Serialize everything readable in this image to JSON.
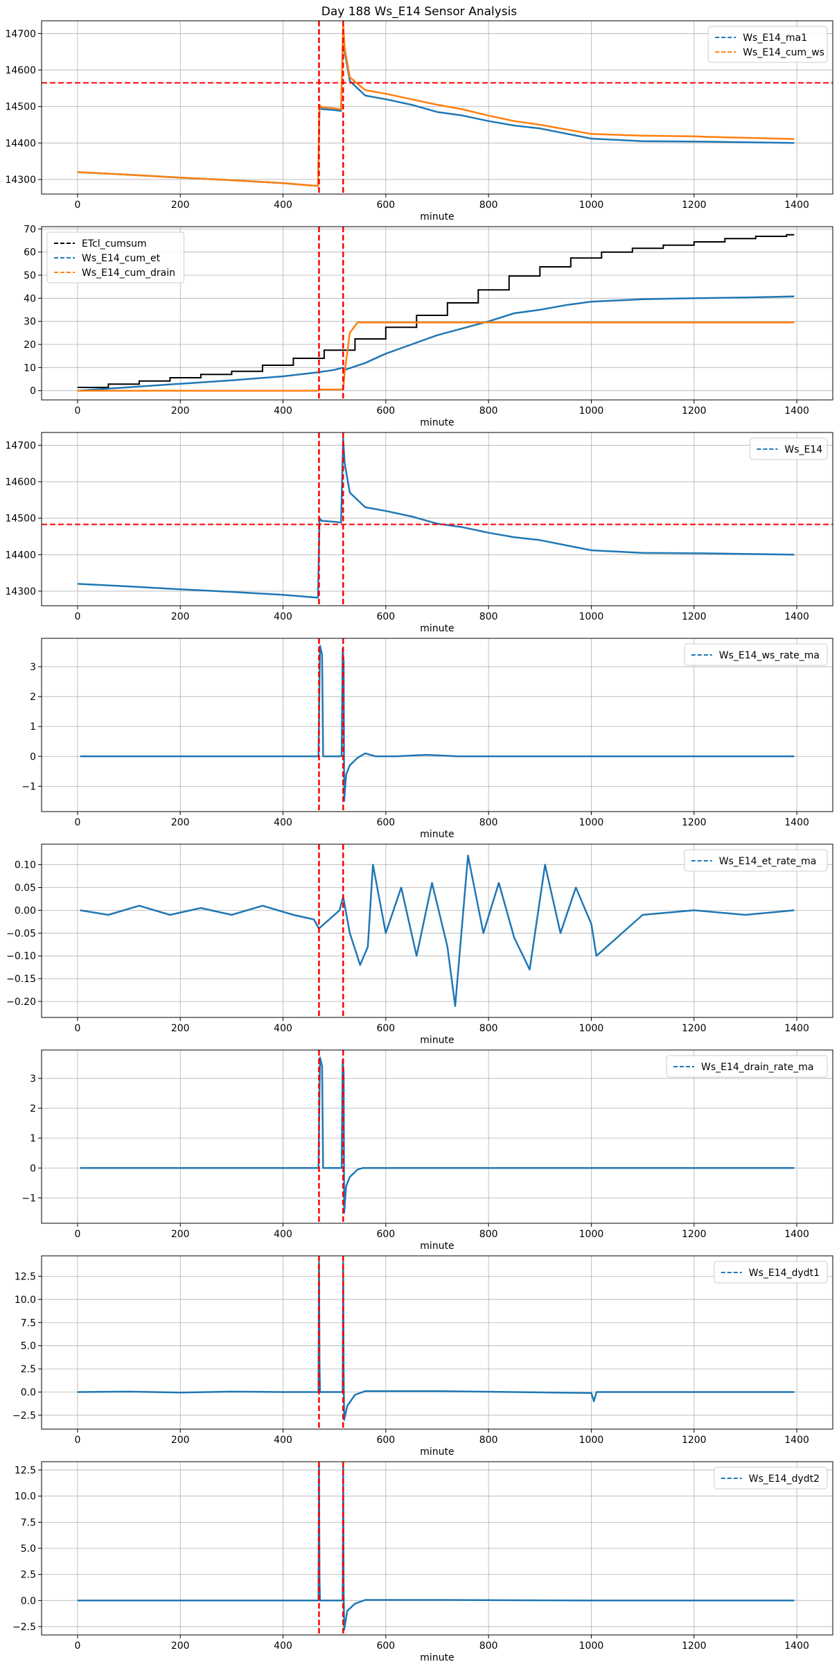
{
  "title": "Day 188 Ws_E14 Sensor Analysis",
  "colors": {
    "blue": "#1f77b4",
    "orange": "#ff7f0e",
    "black": "#000000",
    "threshold": "#ff0000",
    "grid": "#b0b0b0"
  },
  "chart_data": [
    {
      "type": "line",
      "xlabel": "minute",
      "xlim": [
        -70,
        1470
      ],
      "xticks": [
        0,
        200,
        400,
        600,
        800,
        1000,
        1200,
        1400
      ],
      "ylim": [
        14260,
        14735
      ],
      "yticks": [
        14300,
        14400,
        14500,
        14600,
        14700
      ],
      "ytick_labels": [
        "14300",
        "14400",
        "14500",
        "14600",
        "14700"
      ],
      "vlines": [
        470,
        517
      ],
      "hline": 14565,
      "legend": "upper right",
      "series": [
        {
          "name": "Ws_E14_ma1",
          "color": "blue",
          "x": [
            0,
            100,
            200,
            300,
            400,
            468,
            471,
            475,
            500,
            513,
            517,
            520,
            530,
            560,
            600,
            650,
            700,
            750,
            800,
            850,
            900,
            1000,
            1100,
            1200,
            1300,
            1395
          ],
          "y": [
            14320,
            14313,
            14305,
            14298,
            14290,
            14282,
            14500,
            14493,
            14490,
            14488,
            14718,
            14650,
            14570,
            14530,
            14520,
            14505,
            14485,
            14475,
            14460,
            14448,
            14440,
            14412,
            14405,
            14404,
            14402,
            14400
          ]
        },
        {
          "name": "Ws_E14_cum_ws",
          "color": "orange",
          "x": [
            0,
            100,
            200,
            300,
            400,
            468,
            471,
            475,
            500,
            513,
            517,
            520,
            530,
            560,
            600,
            650,
            700,
            750,
            800,
            850,
            900,
            1000,
            1100,
            1200,
            1300,
            1395
          ],
          "y": [
            14320,
            14313,
            14305,
            14298,
            14290,
            14282,
            14505,
            14498,
            14495,
            14492,
            14725,
            14660,
            14580,
            14545,
            14535,
            14520,
            14505,
            14492,
            14475,
            14460,
            14450,
            14425,
            14420,
            14418,
            14414,
            14411
          ]
        }
      ]
    },
    {
      "type": "line",
      "xlabel": "minute",
      "xlim": [
        -70,
        1470
      ],
      "xticks": [
        0,
        200,
        400,
        600,
        800,
        1000,
        1200,
        1400
      ],
      "ylim": [
        -4,
        71
      ],
      "yticks": [
        0,
        10,
        20,
        30,
        40,
        50,
        60,
        70
      ],
      "ytick_labels": [
        "0",
        "10",
        "20",
        "30",
        "40",
        "50",
        "60",
        "70"
      ],
      "vlines": [
        470,
        517
      ],
      "legend": "upper left",
      "step_series": [
        {
          "name": "ETcl_cumsum",
          "color": "black",
          "start": 0,
          "end": 1395,
          "step": 60,
          "values": [
            1.4,
            2.8,
            4.2,
            5.6,
            7.0,
            8.4,
            11.0,
            14.0,
            17.5,
            22.4,
            27.4,
            32.6,
            38.0,
            43.6,
            49.6,
            53.6,
            57.4,
            60.0,
            61.6,
            63.0,
            64.4,
            65.8,
            66.8,
            67.5
          ]
        }
      ],
      "series": [
        {
          "name": "Ws_E14_cum_et",
          "color": "blue",
          "x": [
            0,
            100,
            200,
            300,
            400,
            470,
            500,
            517,
            520,
            560,
            600,
            650,
            700,
            750,
            800,
            850,
            900,
            950,
            1000,
            1100,
            1200,
            1300,
            1395
          ],
          "y": [
            0,
            1.5,
            3,
            4.5,
            6.2,
            8.0,
            9.0,
            10,
            9,
            12,
            16,
            20,
            24,
            27,
            30,
            33.5,
            35,
            37,
            38.5,
            39.6,
            40,
            40.3,
            40.8
          ]
        },
        {
          "name": "Ws_E14_cum_drain",
          "color": "orange",
          "x": [
            0,
            468,
            471,
            517,
            520,
            530,
            545,
            1395
          ],
          "y": [
            0,
            0,
            0.5,
            0.5,
            8,
            25,
            29.5,
            29.5
          ]
        }
      ]
    },
    {
      "type": "line",
      "xlabel": "minute",
      "xlim": [
        -70,
        1470
      ],
      "xticks": [
        0,
        200,
        400,
        600,
        800,
        1000,
        1200,
        1400
      ],
      "ylim": [
        14260,
        14735
      ],
      "yticks": [
        14300,
        14400,
        14500,
        14600,
        14700
      ],
      "ytick_labels": [
        "14300",
        "14400",
        "14500",
        "14600",
        "14700"
      ],
      "vlines": [
        470,
        517
      ],
      "hline": 14483,
      "legend": "upper right",
      "series": [
        {
          "name": "Ws_E14",
          "color": "blue",
          "x": [
            0,
            100,
            200,
            300,
            400,
            468,
            471,
            475,
            500,
            513,
            517,
            520,
            530,
            560,
            600,
            650,
            700,
            750,
            800,
            850,
            900,
            1000,
            1100,
            1200,
            1300,
            1395
          ],
          "y": [
            14320,
            14313,
            14305,
            14298,
            14290,
            14282,
            14500,
            14493,
            14490,
            14488,
            14718,
            14650,
            14570,
            14530,
            14520,
            14505,
            14485,
            14475,
            14460,
            14448,
            14440,
            14412,
            14405,
            14404,
            14402,
            14400
          ]
        }
      ]
    },
    {
      "type": "line",
      "xlabel": "minute",
      "xlim": [
        -70,
        1470
      ],
      "xticks": [
        0,
        200,
        400,
        600,
        800,
        1000,
        1200,
        1400
      ],
      "ylim": [
        -1.85,
        3.95
      ],
      "yticks": [
        -1,
        0,
        1,
        2,
        3
      ],
      "ytick_labels": [
        "−1",
        "0",
        "1",
        "2",
        "3"
      ],
      "vlines": [
        470,
        517
      ],
      "legend": "upper right",
      "series": [
        {
          "name": "Ws_E14_ws_rate_ma",
          "color": "blue",
          "x": [
            5,
            465,
            469,
            472,
            476,
            478,
            514,
            516,
            518,
            519,
            521,
            523,
            530,
            545,
            560,
            580,
            620,
            680,
            740,
            800,
            1000,
            1395
          ],
          "y": [
            0,
            0,
            0,
            3.7,
            3.4,
            0,
            0,
            3.6,
            3.2,
            -1.5,
            -1.0,
            -0.6,
            -0.3,
            -0.05,
            0.1,
            0,
            0,
            0.05,
            0,
            0,
            0,
            0
          ]
        }
      ]
    },
    {
      "type": "line",
      "xlabel": "minute",
      "xlim": [
        -70,
        1470
      ],
      "xticks": [
        0,
        200,
        400,
        600,
        800,
        1000,
        1200,
        1400
      ],
      "ylim": [
        -0.235,
        0.145
      ],
      "yticks": [
        -0.2,
        -0.15,
        -0.1,
        -0.05,
        0,
        0.05,
        0.1
      ],
      "ytick_labels": [
        "−0.20",
        "−0.15",
        "−0.10",
        "−0.05",
        "0.00",
        "0.05",
        "0.10"
      ],
      "vlines": [
        470,
        517
      ],
      "legend": "upper right",
      "series": [
        {
          "name": "Ws_E14_et_rate_ma",
          "color": "blue",
          "x": [
            5,
            60,
            120,
            180,
            240,
            300,
            360,
            420,
            460,
            470,
            490,
            510,
            517,
            530,
            550,
            565,
            575,
            600,
            630,
            660,
            690,
            720,
            735,
            760,
            790,
            820,
            850,
            880,
            910,
            940,
            970,
            1000,
            1010,
            1100,
            1200,
            1300,
            1395
          ],
          "y": [
            0,
            -0.01,
            0.01,
            -0.01,
            0.005,
            -0.01,
            0.01,
            -0.01,
            -0.02,
            -0.04,
            -0.02,
            0.0,
            0.03,
            -0.05,
            -0.12,
            -0.08,
            0.1,
            -0.05,
            0.05,
            -0.1,
            0.06,
            -0.08,
            -0.21,
            0.12,
            -0.05,
            0.06,
            -0.06,
            -0.13,
            0.1,
            -0.05,
            0.05,
            -0.03,
            -0.1,
            -0.01,
            0.0,
            -0.01,
            0.0
          ]
        }
      ]
    },
    {
      "type": "line",
      "xlabel": "minute",
      "xlim": [
        -70,
        1470
      ],
      "xticks": [
        0,
        200,
        400,
        600,
        800,
        1000,
        1200,
        1400
      ],
      "ylim": [
        -1.85,
        3.95
      ],
      "yticks": [
        -1,
        0,
        1,
        2,
        3
      ],
      "ytick_labels": [
        "−1",
        "0",
        "1",
        "2",
        "3"
      ],
      "vlines": [
        470,
        517
      ],
      "legend": "upper right",
      "series": [
        {
          "name": "Ws_E14_drain_rate_ma",
          "color": "blue",
          "x": [
            5,
            465,
            469,
            472,
            476,
            478,
            514,
            516,
            518,
            519,
            521,
            523,
            530,
            545,
            555,
            1395
          ],
          "y": [
            0,
            0,
            0,
            3.7,
            3.4,
            0,
            0,
            3.6,
            3.2,
            -1.5,
            -1.0,
            -0.6,
            -0.3,
            -0.05,
            0,
            0
          ]
        }
      ]
    },
    {
      "type": "line",
      "xlabel": "minute",
      "xlim": [
        -70,
        1470
      ],
      "xticks": [
        0,
        200,
        400,
        600,
        800,
        1000,
        1200,
        1400
      ],
      "ylim": [
        -4,
        14.7
      ],
      "yticks": [
        -2.5,
        0,
        2.5,
        5,
        7.5,
        10,
        12.5
      ],
      "ytick_labels": [
        "−2.5",
        "0.0",
        "2.5",
        "5.0",
        "7.5",
        "10.0",
        "12.5"
      ],
      "vlines": [
        470,
        517
      ],
      "legend": "upper right",
      "series": [
        {
          "name": "Ws_E14_dydt1",
          "color": "blue",
          "x": [
            0,
            100,
            200,
            300,
            400,
            469,
            470,
            471,
            472,
            516,
            517,
            518,
            519,
            525,
            540,
            560,
            700,
            1000,
            1005,
            1010,
            1200,
            1395
          ],
          "y": [
            0,
            0.05,
            -0.05,
            0.05,
            0,
            0,
            14,
            3,
            0,
            0,
            14,
            2,
            -3,
            -1.5,
            -0.3,
            0.1,
            0.1,
            -0.1,
            -1.0,
            0,
            0,
            0
          ]
        }
      ]
    },
    {
      "type": "line",
      "xlabel": "minute",
      "xlim": [
        -70,
        1470
      ],
      "xticks": [
        0,
        200,
        400,
        600,
        800,
        1000,
        1200,
        1400
      ],
      "ylim": [
        -3.3,
        13.3
      ],
      "yticks": [
        -2.5,
        0,
        2.5,
        5,
        7.5,
        10,
        12.5
      ],
      "ytick_labels": [
        "−2.5",
        "0.0",
        "2.5",
        "5.0",
        "7.5",
        "10.0",
        "12.5"
      ],
      "vlines": [
        470,
        517
      ],
      "legend": "upper right",
      "series": [
        {
          "name": "Ws_E14_dydt2",
          "color": "blue",
          "x": [
            0,
            100,
            200,
            300,
            400,
            469,
            470,
            471,
            472,
            516,
            517,
            518,
            519,
            525,
            540,
            560,
            700,
            1000,
            1200,
            1395
          ],
          "y": [
            0,
            0,
            0,
            0,
            0,
            0,
            13,
            2,
            0,
            0,
            13,
            1,
            -2.8,
            -1.0,
            -0.3,
            0.05,
            0.05,
            0,
            0,
            0
          ]
        }
      ]
    }
  ]
}
